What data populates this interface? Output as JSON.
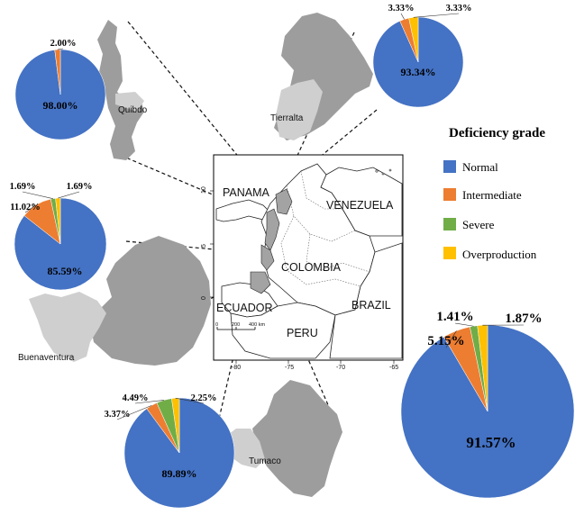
{
  "legend": {
    "title": "Deficiency grade",
    "items": [
      {
        "label": "Normal",
        "color": "#4472c4"
      },
      {
        "label": "Intermediate",
        "color": "#ed7d31"
      },
      {
        "label": "Severe",
        "color": "#70ad47"
      },
      {
        "label": "Overproduction",
        "color": "#ffc000"
      }
    ]
  },
  "map": {
    "countries": {
      "panama": "PANAMA",
      "venezuela": "VENEZUELA",
      "colombia": "COLOMBIA",
      "ecuador": "ECUADOR",
      "peru": "PERU",
      "brazil": "BRAZIL"
    },
    "lat_ticks": [
      "10",
      "5",
      "0"
    ],
    "lon_ticks": [
      "-80",
      "-75",
      "-70",
      "-65"
    ],
    "scale_labels": [
      "0",
      "200",
      "400 km"
    ]
  },
  "sites": {
    "quibdo": "Quibdo",
    "tierralta": "Tierralta",
    "buenaventura": "Buenaventura",
    "tumaco": "Tumaco"
  },
  "chart_data": [
    {
      "type": "pie",
      "site": "Quibdo",
      "categories": [
        "Normal",
        "Intermediate"
      ],
      "values": [
        98.0,
        2.0
      ],
      "labels": [
        "98.00%",
        "2.00%"
      ]
    },
    {
      "type": "pie",
      "site": "Tierralta",
      "categories": [
        "Normal",
        "Intermediate",
        "Overproduction"
      ],
      "values": [
        93.34,
        3.33,
        3.33
      ],
      "labels": [
        "93.34%",
        "3.33%",
        "3.33%"
      ]
    },
    {
      "type": "pie",
      "site": "Buenaventura",
      "categories": [
        "Normal",
        "Intermediate",
        "Severe",
        "Overproduction"
      ],
      "values": [
        85.59,
        11.02,
        1.69,
        1.69
      ],
      "labels": [
        "85.59%",
        "11.02%",
        "1.69%",
        "1.69%"
      ]
    },
    {
      "type": "pie",
      "site": "Tumaco",
      "categories": [
        "Normal",
        "Intermediate",
        "Severe",
        "Overproduction"
      ],
      "values": [
        89.89,
        3.37,
        4.49,
        2.25
      ],
      "labels": [
        "89.89%",
        "3.37%",
        "4.49%",
        "2.25%"
      ]
    },
    {
      "type": "pie",
      "site": "",
      "categories": [
        "Normal",
        "Intermediate",
        "Severe",
        "Overproduction"
      ],
      "values": [
        91.57,
        5.15,
        1.41,
        1.87
      ],
      "labels": [
        "91.57%",
        "5.15%",
        "1.41%",
        "1.87%"
      ]
    }
  ]
}
